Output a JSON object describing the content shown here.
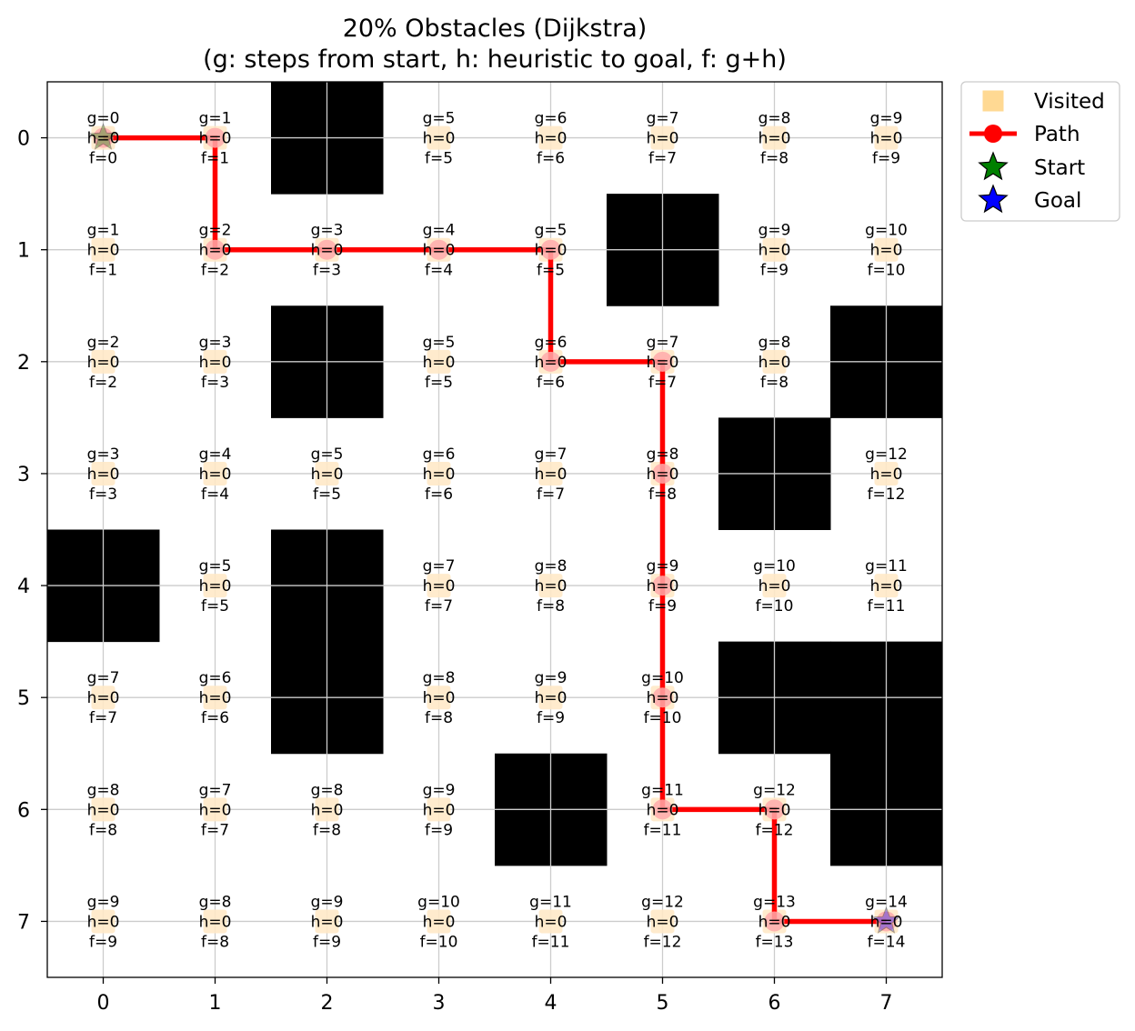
{
  "chart_data": {
    "type": "heatmap",
    "title": "20% Obstacles (Dijkstra)",
    "subtitle": "(g: steps from start, h: heuristic to goal, f: g+h)",
    "xticks": [
      "0",
      "1",
      "2",
      "3",
      "4",
      "5",
      "6",
      "7"
    ],
    "yticks": [
      "0",
      "1",
      "2",
      "3",
      "4",
      "5",
      "6",
      "7"
    ],
    "xlim": [
      -0.5,
      7.5
    ],
    "ylim": [
      7.5,
      -0.5
    ],
    "grid": true,
    "legend_position": "outside-top-right",
    "legend": [
      {
        "label": "Visited",
        "marker": "square",
        "color": "#ffc04d"
      },
      {
        "label": "Path",
        "marker": "line-circle",
        "color": "#ff0000"
      },
      {
        "label": "Start",
        "marker": "star",
        "color": "#008000"
      },
      {
        "label": "Goal",
        "marker": "star",
        "color": "#0000ff"
      }
    ],
    "colors": {
      "obstacle": "#000000",
      "visited": "#ffe9c8",
      "path": "#ff0000",
      "path_marker": "#ffaaaa",
      "start": "#008000",
      "goal": "#0000ff"
    },
    "obstacles": [
      [
        0,
        2
      ],
      [
        1,
        5
      ],
      [
        2,
        2
      ],
      [
        2,
        7
      ],
      [
        3,
        6
      ],
      [
        4,
        0
      ],
      [
        4,
        2
      ],
      [
        5,
        2
      ],
      [
        5,
        6
      ],
      [
        5,
        7
      ],
      [
        6,
        4
      ],
      [
        6,
        7
      ]
    ],
    "g_values": [
      [
        0,
        1,
        null,
        5,
        6,
        7,
        8,
        9
      ],
      [
        1,
        2,
        3,
        4,
        5,
        null,
        9,
        10
      ],
      [
        2,
        3,
        null,
        5,
        6,
        7,
        8,
        null
      ],
      [
        3,
        4,
        5,
        6,
        7,
        8,
        null,
        12
      ],
      [
        null,
        5,
        null,
        7,
        8,
        9,
        10,
        11
      ],
      [
        7,
        6,
        null,
        8,
        9,
        10,
        null,
        null
      ],
      [
        8,
        7,
        8,
        9,
        null,
        11,
        12,
        null
      ],
      [
        9,
        8,
        9,
        10,
        11,
        12,
        13,
        14
      ]
    ],
    "h_values": [
      [
        0,
        0,
        null,
        0,
        0,
        0,
        0,
        0
      ],
      [
        0,
        0,
        0,
        0,
        0,
        null,
        0,
        0
      ],
      [
        0,
        0,
        null,
        0,
        0,
        0,
        0,
        null
      ],
      [
        0,
        0,
        0,
        0,
        0,
        0,
        null,
        0
      ],
      [
        null,
        0,
        null,
        0,
        0,
        0,
        0,
        0
      ],
      [
        0,
        0,
        null,
        0,
        0,
        0,
        null,
        null
      ],
      [
        0,
        0,
        0,
        0,
        null,
        0,
        0,
        null
      ],
      [
        0,
        0,
        0,
        0,
        0,
        0,
        0,
        0
      ]
    ],
    "f_values": [
      [
        0,
        1,
        null,
        5,
        6,
        7,
        8,
        9
      ],
      [
        1,
        2,
        3,
        4,
        5,
        null,
        9,
        10
      ],
      [
        2,
        3,
        null,
        5,
        6,
        7,
        8,
        null
      ],
      [
        3,
        4,
        5,
        6,
        7,
        8,
        null,
        12
      ],
      [
        null,
        5,
        null,
        7,
        8,
        9,
        10,
        11
      ],
      [
        7,
        6,
        null,
        8,
        9,
        10,
        null,
        null
      ],
      [
        8,
        7,
        8,
        9,
        null,
        11,
        12,
        null
      ],
      [
        9,
        8,
        9,
        10,
        11,
        12,
        13,
        14
      ]
    ],
    "path": [
      [
        0,
        0
      ],
      [
        0,
        1
      ],
      [
        1,
        1
      ],
      [
        1,
        2
      ],
      [
        1,
        3
      ],
      [
        1,
        4
      ],
      [
        2,
        4
      ],
      [
        2,
        5
      ],
      [
        3,
        5
      ],
      [
        4,
        5
      ],
      [
        5,
        5
      ],
      [
        6,
        5
      ],
      [
        6,
        6
      ],
      [
        7,
        6
      ],
      [
        7,
        7
      ]
    ],
    "start": [
      0,
      0
    ],
    "goal": [
      7,
      7
    ]
  }
}
